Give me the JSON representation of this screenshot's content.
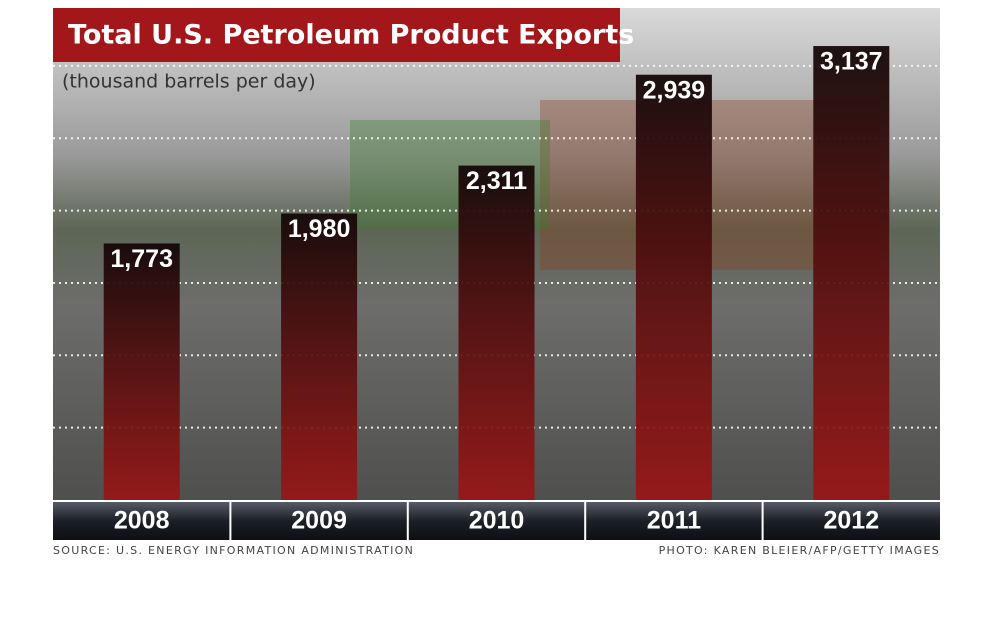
{
  "chart_data": {
    "type": "bar",
    "title": "Total U.S. Petroleum Product Exports",
    "subtitle": "(thousand barrels per day)",
    "categories": [
      "2008",
      "2009",
      "2010",
      "2011",
      "2012"
    ],
    "values": [
      1773,
      1980,
      2311,
      2939,
      3137
    ],
    "value_labels": [
      "1,773",
      "1,980",
      "2,311",
      "2,939",
      "3,137"
    ],
    "color": "#9c1414",
    "ylim": [
      0,
      3400
    ],
    "yticks": [
      500,
      1000,
      1500,
      2000,
      2500,
      3000
    ],
    "grid": true,
    "source": "SOURCE: U.S. ENERGY INFORMATION ADMINISTRATION",
    "credit": "PHOTO: KAREN BLEIER/AFP/GETTY IMAGES"
  }
}
